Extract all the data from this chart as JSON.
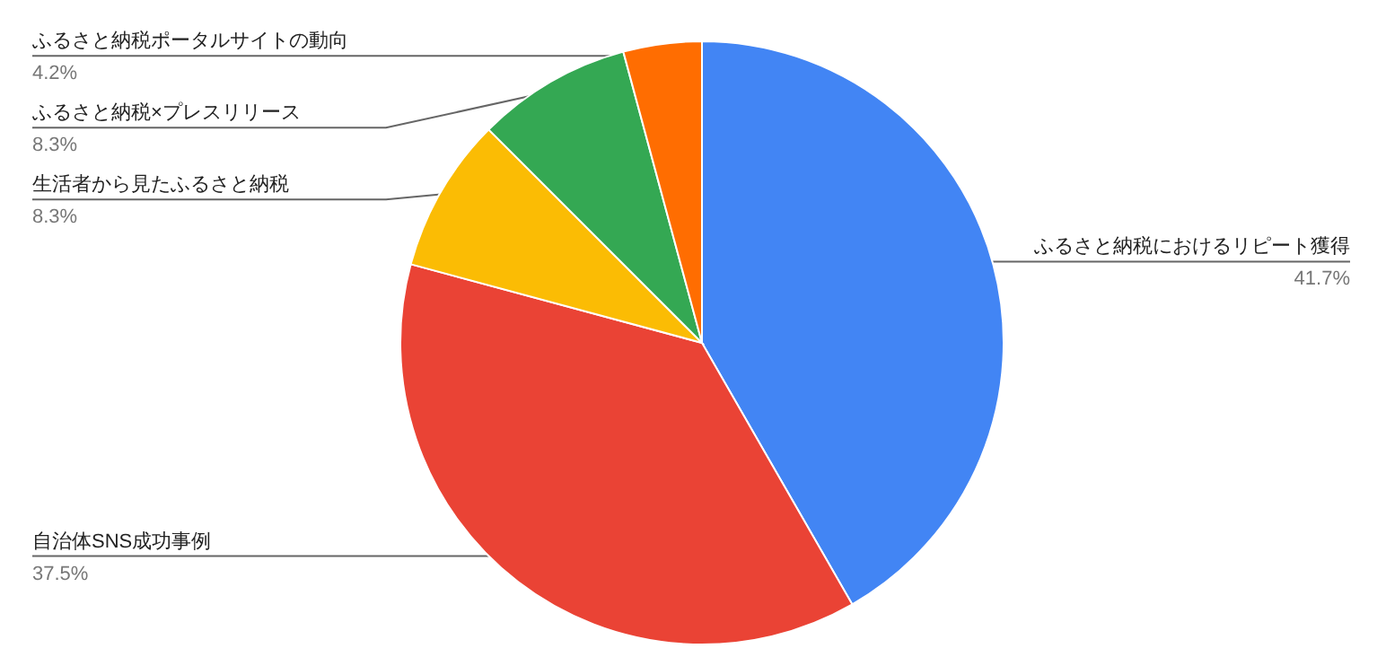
{
  "chart_data": {
    "type": "pie",
    "categories": [
      "ふるさと納税におけるリピート獲得",
      "自治体SNS成功事例",
      "生活者から見たふるさと納税",
      "ふるさと納税×プレスリリース",
      "ふるさと納税ポータルサイトの動向"
    ],
    "values": [
      41.7,
      37.5,
      8.3,
      8.3,
      4.2
    ],
    "colors": [
      "#4285f4",
      "#ea4335",
      "#fbbc04",
      "#34a853",
      "#ff6d01"
    ],
    "value_labels": [
      "41.7%",
      "37.5%",
      "8.3%",
      "8.3%",
      "4.2%"
    ]
  }
}
